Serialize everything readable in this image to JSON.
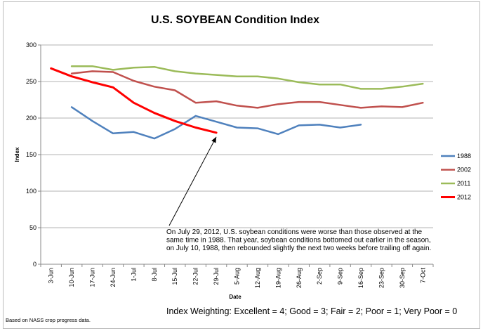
{
  "chart_data": {
    "type": "line",
    "title": "U.S. SOYBEAN Condition Index",
    "xlabel": "Date",
    "ylabel": "Index",
    "ylim": [
      0,
      300
    ],
    "yticks": [
      0,
      50,
      100,
      150,
      200,
      250,
      300
    ],
    "grid": true,
    "legend_position": "right",
    "categories": [
      "3-Jun",
      "10-Jun",
      "17-Jun",
      "24-Jun",
      "1-Jul",
      "8-Jul",
      "15-Jul",
      "22-Jul",
      "29-Jul",
      "5-Aug",
      "12-Aug",
      "19-Aug",
      "26-Aug",
      "2-Sep",
      "9-Sep",
      "16-Sep",
      "23-Sep",
      "30-Sep",
      "7-Oct"
    ],
    "series": [
      {
        "name": "1988",
        "color": "#4f81bd",
        "values": [
          null,
          215,
          196,
          179,
          181,
          172,
          185,
          203,
          195,
          187,
          186,
          178,
          190,
          191,
          187,
          191,
          null,
          null,
          null
        ]
      },
      {
        "name": "2002",
        "color": "#c0504d",
        "values": [
          null,
          261,
          264,
          263,
          251,
          243,
          238,
          221,
          223,
          217,
          214,
          219,
          222,
          222,
          218,
          214,
          216,
          215,
          221
        ]
      },
      {
        "name": "2011",
        "color": "#9bbb59",
        "values": [
          null,
          271,
          271,
          266,
          269,
          270,
          264,
          261,
          259,
          257,
          257,
          254,
          249,
          246,
          246,
          240,
          240,
          243,
          247
        ]
      },
      {
        "name": "2012",
        "color": "#ff0000",
        "values": [
          268,
          257,
          249,
          242,
          221,
          207,
          196,
          187,
          180,
          null,
          null,
          null,
          null,
          null,
          null,
          null,
          null,
          null,
          null
        ]
      }
    ],
    "annotation": {
      "lines": [
        "On July 29, 2012, U.S. soybean conditions were worse than those observed at the",
        "same time in 1988.  That year, soybean conditions bottomed out earlier in the season,",
        "on July 10, 1988, then rebounded slightly the next two weeks before trailing off again."
      ],
      "arrow_target": {
        "category": "29-Jul",
        "series": "2012",
        "value": 180
      }
    }
  },
  "footer": {
    "weighting": "Index Weighting:  Excellent = 4; Good = 3; Fair = 2; Poor = 1; Very Poor = 0",
    "source": "Based on NASS crop progress data."
  }
}
